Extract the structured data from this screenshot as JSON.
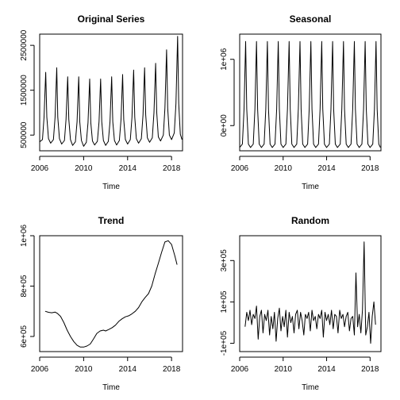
{
  "chart_data": [
    {
      "type": "line",
      "title": "Original Series",
      "xlabel": "Time",
      "ylabel": "",
      "xlim": [
        2006.0,
        2019.0
      ],
      "ylim": [
        150000,
        2750000
      ],
      "xticks": [
        2006,
        2010,
        2014,
        2018
      ],
      "xtick_labels": [
        "2006",
        "2010",
        "2014",
        "2018"
      ],
      "yticks": [
        500000,
        1500000,
        2500000
      ],
      "ytick_labels": [
        "500000",
        "1500000",
        "2500000"
      ],
      "grid": false,
      "series": [
        {
          "x": [
            2006.0,
            2006.25,
            2006.4,
            2006.55,
            2006.65,
            2006.8,
            2007.0,
            2007.25,
            2007.4,
            2007.55,
            2007.65,
            2007.8,
            2008.0,
            2008.25,
            2008.4,
            2008.55,
            2008.65,
            2008.8,
            2009.0,
            2009.25,
            2009.4,
            2009.55,
            2009.65,
            2009.8,
            2010.0,
            2010.25,
            2010.4,
            2010.55,
            2010.65,
            2010.8,
            2011.0,
            2011.25,
            2011.4,
            2011.55,
            2011.65,
            2011.8,
            2012.0,
            2012.25,
            2012.4,
            2012.55,
            2012.65,
            2012.8,
            2013.0,
            2013.25,
            2013.4,
            2013.55,
            2013.65,
            2013.8,
            2014.0,
            2014.25,
            2014.4,
            2014.55,
            2014.65,
            2014.8,
            2015.0,
            2015.25,
            2015.4,
            2015.55,
            2015.65,
            2015.8,
            2016.0,
            2016.25,
            2016.4,
            2016.55,
            2016.65,
            2016.8,
            2017.0,
            2017.25,
            2017.4,
            2017.55,
            2017.65,
            2017.8,
            2018.0,
            2018.25,
            2018.4,
            2018.55,
            2018.65,
            2018.8,
            2018.95
          ],
          "y": [
            350000,
            400000,
            900000,
            1900000,
            900000,
            420000,
            320000,
            400000,
            900000,
            2000000,
            900000,
            420000,
            300000,
            380000,
            850000,
            1800000,
            850000,
            400000,
            270000,
            350000,
            800000,
            1800000,
            800000,
            380000,
            250000,
            340000,
            780000,
            1750000,
            780000,
            370000,
            280000,
            360000,
            800000,
            1750000,
            800000,
            380000,
            270000,
            360000,
            800000,
            1800000,
            800000,
            380000,
            280000,
            380000,
            850000,
            1850000,
            850000,
            400000,
            300000,
            400000,
            900000,
            1950000,
            900000,
            420000,
            320000,
            420000,
            950000,
            2000000,
            950000,
            440000,
            340000,
            440000,
            1000000,
            2100000,
            1000000,
            460000,
            370000,
            500000,
            1100000,
            2400000,
            1100000,
            500000,
            400000,
            550000,
            1200000,
            2700000,
            1200000,
            520000,
            400000
          ]
        }
      ]
    },
    {
      "type": "line",
      "title": "Seasonal",
      "xlabel": "Time",
      "ylabel": "",
      "xlim": [
        2006.0,
        2019.0
      ],
      "ylim": [
        -380000,
        1380000
      ],
      "xticks": [
        2006,
        2010,
        2014,
        2018
      ],
      "xtick_labels": [
        "2006",
        "2010",
        "2014",
        "2018"
      ],
      "yticks": [
        0,
        1000000
      ],
      "ytick_labels": [
        "0e+00",
        "1e+06"
      ],
      "grid": false,
      "series": [
        {
          "x": [
            2006.0,
            2006.25,
            2006.4,
            2006.55,
            2006.65,
            2006.8,
            2007.0,
            2007.25,
            2007.4,
            2007.55,
            2007.65,
            2007.8,
            2008.0,
            2008.25,
            2008.4,
            2008.55,
            2008.65,
            2008.8,
            2009.0,
            2009.25,
            2009.4,
            2009.55,
            2009.65,
            2009.8,
            2010.0,
            2010.25,
            2010.4,
            2010.55,
            2010.65,
            2010.8,
            2011.0,
            2011.25,
            2011.4,
            2011.55,
            2011.65,
            2011.8,
            2012.0,
            2012.25,
            2012.4,
            2012.55,
            2012.65,
            2012.8,
            2013.0,
            2013.25,
            2013.4,
            2013.55,
            2013.65,
            2013.8,
            2014.0,
            2014.25,
            2014.4,
            2014.55,
            2014.65,
            2014.8,
            2015.0,
            2015.25,
            2015.4,
            2015.55,
            2015.65,
            2015.8,
            2016.0,
            2016.25,
            2016.4,
            2016.55,
            2016.65,
            2016.8,
            2017.0,
            2017.25,
            2017.4,
            2017.55,
            2017.65,
            2017.8,
            2018.0,
            2018.25,
            2018.4,
            2018.55,
            2018.65,
            2018.8,
            2018.95
          ],
          "y": [
            -330000,
            -280000,
            250000,
            1270000,
            250000,
            -280000,
            -330000,
            -280000,
            250000,
            1270000,
            250000,
            -280000,
            -330000,
            -280000,
            250000,
            1270000,
            250000,
            -280000,
            -330000,
            -280000,
            250000,
            1270000,
            250000,
            -280000,
            -330000,
            -280000,
            250000,
            1270000,
            250000,
            -280000,
            -330000,
            -280000,
            250000,
            1270000,
            250000,
            -280000,
            -330000,
            -280000,
            250000,
            1270000,
            250000,
            -280000,
            -330000,
            -280000,
            250000,
            1270000,
            250000,
            -280000,
            -330000,
            -280000,
            250000,
            1270000,
            250000,
            -280000,
            -330000,
            -280000,
            250000,
            1270000,
            250000,
            -280000,
            -330000,
            -280000,
            250000,
            1270000,
            250000,
            -280000,
            -330000,
            -280000,
            250000,
            1270000,
            250000,
            -280000,
            -330000,
            -280000,
            250000,
            1270000,
            250000,
            -280000,
            -330000
          ]
        }
      ]
    },
    {
      "type": "line",
      "title": "Trend",
      "xlabel": "Time",
      "ylabel": "",
      "xlim": [
        2006.0,
        2019.0
      ],
      "ylim": [
        540000,
        1000000
      ],
      "xticks": [
        2006,
        2010,
        2014,
        2018
      ],
      "xtick_labels": [
        "2006",
        "2010",
        "2014",
        "2018"
      ],
      "yticks": [
        600000,
        800000,
        1000000
      ],
      "ytick_labels": [
        "6e+05",
        "8e+05",
        "1e+06"
      ],
      "grid": false,
      "series": [
        {
          "x": [
            2006.5,
            2006.8,
            2007.1,
            2007.4,
            2007.6,
            2007.9,
            2008.2,
            2008.5,
            2008.8,
            2009.1,
            2009.4,
            2009.7,
            2010.0,
            2010.3,
            2010.6,
            2010.9,
            2011.2,
            2011.5,
            2011.8,
            2012.0,
            2012.3,
            2012.6,
            2012.9,
            2013.2,
            2013.5,
            2013.8,
            2014.1,
            2014.4,
            2014.7,
            2015.0,
            2015.3,
            2015.6,
            2015.9,
            2016.2,
            2016.5,
            2016.8,
            2017.1,
            2017.4,
            2017.7,
            2018.0,
            2018.3,
            2018.5
          ],
          "y": [
            700000,
            696000,
            694000,
            697000,
            692000,
            680000,
            655000,
            625000,
            600000,
            580000,
            565000,
            558000,
            558000,
            562000,
            570000,
            590000,
            612000,
            622000,
            625000,
            622000,
            628000,
            635000,
            645000,
            660000,
            670000,
            678000,
            682000,
            690000,
            700000,
            715000,
            738000,
            755000,
            770000,
            800000,
            848000,
            890000,
            935000,
            975000,
            980000,
            965000,
            920000,
            885000
          ]
        }
      ]
    },
    {
      "type": "line",
      "title": "Random",
      "xlabel": "Time",
      "ylabel": "",
      "xlim": [
        2006.0,
        2019.0
      ],
      "ylim": [
        -140000,
        420000
      ],
      "xticks": [
        2006,
        2010,
        2014,
        2018
      ],
      "xtick_labels": [
        "2006",
        "2010",
        "2014",
        "2018"
      ],
      "yticks": [
        -100000,
        100000,
        300000
      ],
      "ytick_labels": [
        "-1e+05",
        "1e+05",
        "3e+05"
      ],
      "grid": false,
      "series": [
        {
          "x": [
            2006.5,
            2006.65,
            2006.8,
            2006.95,
            2007.1,
            2007.25,
            2007.4,
            2007.55,
            2007.7,
            2007.85,
            2008.0,
            2008.15,
            2008.3,
            2008.45,
            2008.6,
            2008.75,
            2008.9,
            2009.05,
            2009.2,
            2009.35,
            2009.5,
            2009.65,
            2009.8,
            2009.95,
            2010.1,
            2010.25,
            2010.4,
            2010.55,
            2010.7,
            2010.85,
            2011.0,
            2011.15,
            2011.3,
            2011.45,
            2011.6,
            2011.75,
            2011.9,
            2012.05,
            2012.2,
            2012.35,
            2012.5,
            2012.65,
            2012.8,
            2012.95,
            2013.1,
            2013.25,
            2013.4,
            2013.55,
            2013.7,
            2013.85,
            2014.0,
            2014.15,
            2014.3,
            2014.45,
            2014.6,
            2014.75,
            2014.9,
            2015.05,
            2015.2,
            2015.35,
            2015.5,
            2015.65,
            2015.8,
            2015.95,
            2016.1,
            2016.25,
            2016.4,
            2016.55,
            2016.7,
            2016.85,
            2017.0,
            2017.15,
            2017.3,
            2017.45,
            2017.6,
            2017.75,
            2017.9,
            2018.05,
            2018.2,
            2018.35,
            2018.5
          ],
          "y": [
            -20000,
            50000,
            10000,
            60000,
            -10000,
            40000,
            20000,
            80000,
            -80000,
            30000,
            60000,
            -50000,
            40000,
            10000,
            60000,
            -60000,
            30000,
            -30000,
            50000,
            -90000,
            20000,
            70000,
            -40000,
            30000,
            -20000,
            60000,
            -70000,
            50000,
            0,
            30000,
            -50000,
            40000,
            60000,
            -30000,
            50000,
            10000,
            -60000,
            40000,
            20000,
            50000,
            -40000,
            60000,
            10000,
            30000,
            -30000,
            40000,
            20000,
            60000,
            -70000,
            50000,
            10000,
            40000,
            -10000,
            60000,
            -30000,
            40000,
            30000,
            -50000,
            60000,
            20000,
            40000,
            -20000,
            30000,
            50000,
            -40000,
            20000,
            30000,
            -60000,
            240000,
            -20000,
            40000,
            -50000,
            60000,
            390000,
            -60000,
            -20000,
            50000,
            -100000,
            30000,
            100000,
            -10000
          ]
        }
      ]
    }
  ]
}
